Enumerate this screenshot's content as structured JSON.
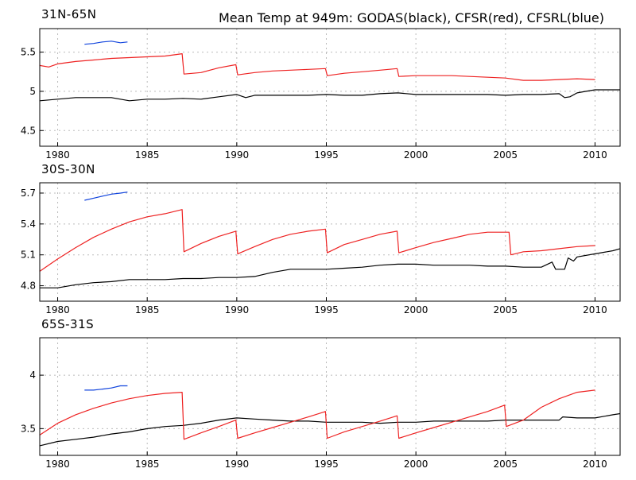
{
  "title": "Mean Temp at 949m: GODAS(black), CFSR(red), CFSRL(blue)",
  "colors": {
    "GODAS": "#000000",
    "CFSR": "#ee2222",
    "CFSRL": "#1144dd",
    "grid": "#bbbbbb",
    "frame": "#000000"
  },
  "chart_data": [
    {
      "type": "line",
      "title": "31N-65N",
      "xlim": [
        1979,
        2011.4
      ],
      "ylim": [
        4.3,
        5.8
      ],
      "xticks": [
        1980,
        1985,
        1990,
        1995,
        2000,
        2005,
        2010
      ],
      "yticks": [
        4.5,
        5,
        5.5
      ],
      "ytick_labels": [
        "4.5",
        "5",
        "5.5"
      ],
      "grid": true,
      "series": [
        {
          "name": "GODAS",
          "color": "#000000",
          "x": [
            1979,
            1980,
            1981,
            1982,
            1983,
            1983.5,
            1984,
            1985,
            1986,
            1987,
            1988,
            1989,
            1990,
            1990.5,
            1991,
            1992,
            1993,
            1994,
            1995,
            1996,
            1997,
            1998,
            1999,
            2000,
            2001,
            2002,
            2003,
            2004,
            2005,
            2006,
            2007,
            2008,
            2008.3,
            2008.6,
            2009,
            2009.5,
            2010,
            2011,
            2011.4
          ],
          "y": [
            4.88,
            4.9,
            4.92,
            4.92,
            4.92,
            4.9,
            4.88,
            4.9,
            4.9,
            4.91,
            4.9,
            4.93,
            4.96,
            4.92,
            4.95,
            4.95,
            4.95,
            4.95,
            4.96,
            4.95,
            4.95,
            4.97,
            4.98,
            4.96,
            4.96,
            4.96,
            4.96,
            4.96,
            4.95,
            4.96,
            4.96,
            4.97,
            4.92,
            4.93,
            4.98,
            5.0,
            5.02,
            5.02,
            5.02
          ]
        },
        {
          "name": "CFSR",
          "color": "#ee2222",
          "x": [
            1979,
            1979.5,
            1980,
            1981,
            1982,
            1983,
            1984,
            1985,
            1986,
            1986.95,
            1987.05,
            1988,
            1989,
            1989.95,
            1990.05,
            1991,
            1992,
            1993,
            1994,
            1994.95,
            1995.05,
            1996,
            1997,
            1998,
            1998.95,
            1999.05,
            2000,
            2001,
            2002,
            2003,
            2004,
            2005,
            2006,
            2007,
            2008,
            2009,
            2010
          ],
          "y": [
            5.33,
            5.31,
            5.35,
            5.38,
            5.4,
            5.42,
            5.43,
            5.44,
            5.45,
            5.48,
            5.22,
            5.24,
            5.3,
            5.34,
            5.21,
            5.24,
            5.26,
            5.27,
            5.28,
            5.29,
            5.2,
            5.23,
            5.25,
            5.27,
            5.29,
            5.19,
            5.2,
            5.2,
            5.2,
            5.19,
            5.18,
            5.17,
            5.14,
            5.14,
            5.15,
            5.16,
            5.15
          ]
        },
        {
          "name": "CFSRL",
          "color": "#1144dd",
          "x": [
            1981.5,
            1982,
            1982.5,
            1983,
            1983.5,
            1983.9
          ],
          "y": [
            5.6,
            5.61,
            5.63,
            5.64,
            5.62,
            5.63
          ]
        }
      ]
    },
    {
      "type": "line",
      "title": "30S-30N",
      "xlim": [
        1979,
        2011.4
      ],
      "ylim": [
        4.65,
        5.8
      ],
      "xticks": [
        1980,
        1985,
        1990,
        1995,
        2000,
        2005,
        2010
      ],
      "yticks": [
        4.8,
        5.1,
        5.4,
        5.7
      ],
      "ytick_labels": [
        "4.8",
        "5.1",
        "5.4",
        "5.7"
      ],
      "grid": true,
      "series": [
        {
          "name": "GODAS",
          "color": "#000000",
          "x": [
            1979,
            1980,
            1981,
            1982,
            1983,
            1984,
            1985,
            1986,
            1987,
            1988,
            1989,
            1990,
            1991,
            1992,
            1993,
            1994,
            1995,
            1996,
            1997,
            1998,
            1999,
            2000,
            2001,
            2002,
            2003,
            2004,
            2005,
            2006,
            2007,
            2007.6,
            2007.8,
            2008.3,
            2008.5,
            2008.8,
            2009,
            2010,
            2011,
            2011.4
          ],
          "y": [
            4.78,
            4.78,
            4.81,
            4.83,
            4.84,
            4.86,
            4.86,
            4.86,
            4.87,
            4.87,
            4.88,
            4.88,
            4.89,
            4.93,
            4.96,
            4.96,
            4.96,
            4.97,
            4.98,
            5.0,
            5.01,
            5.01,
            5.0,
            5.0,
            5.0,
            4.99,
            4.99,
            4.98,
            4.98,
            5.03,
            4.96,
            4.96,
            5.07,
            5.04,
            5.08,
            5.11,
            5.14,
            5.16
          ]
        },
        {
          "name": "CFSR",
          "color": "#ee2222",
          "x": [
            1979,
            1980,
            1981,
            1982,
            1983,
            1984,
            1985,
            1986,
            1986.95,
            1987.05,
            1988,
            1989,
            1989.95,
            1990.05,
            1991,
            1992,
            1993,
            1994,
            1994.95,
            1995.05,
            1996,
            1997,
            1998,
            1998.95,
            1999.05,
            2000,
            2001,
            2002,
            2003,
            2004,
            2005.2,
            2005.3,
            2006,
            2007,
            2008,
            2009,
            2010
          ],
          "y": [
            4.94,
            5.06,
            5.17,
            5.27,
            5.35,
            5.42,
            5.47,
            5.5,
            5.54,
            5.13,
            5.21,
            5.28,
            5.33,
            5.11,
            5.18,
            5.25,
            5.3,
            5.33,
            5.35,
            5.12,
            5.2,
            5.25,
            5.3,
            5.33,
            5.12,
            5.17,
            5.22,
            5.26,
            5.3,
            5.32,
            5.32,
            5.1,
            5.13,
            5.14,
            5.16,
            5.18,
            5.19
          ]
        },
        {
          "name": "CFSRL",
          "color": "#1144dd",
          "x": [
            1981.5,
            1982,
            1982.5,
            1983,
            1983.5,
            1983.9
          ],
          "y": [
            5.63,
            5.65,
            5.67,
            5.69,
            5.7,
            5.71
          ]
        }
      ]
    },
    {
      "type": "line",
      "title": "65S-31S",
      "xlim": [
        1979,
        2011.4
      ],
      "ylim": [
        3.25,
        4.35
      ],
      "xticks": [
        1980,
        1985,
        1990,
        1995,
        2000,
        2005,
        2010
      ],
      "yticks": [
        3.5,
        4
      ],
      "ytick_labels": [
        "3.5",
        "4"
      ],
      "grid": true,
      "series": [
        {
          "name": "GODAS",
          "color": "#000000",
          "x": [
            1979,
            1980,
            1981,
            1982,
            1983,
            1984,
            1985,
            1986,
            1987,
            1988,
            1989,
            1990,
            1991,
            1992,
            1993,
            1994,
            1995,
            1996,
            1997,
            1998,
            1999,
            2000,
            2001,
            2002,
            2003,
            2004,
            2005,
            2006,
            2007,
            2008,
            2008.2,
            2009,
            2010,
            2011,
            2011.4
          ],
          "y": [
            3.34,
            3.38,
            3.4,
            3.42,
            3.45,
            3.47,
            3.5,
            3.52,
            3.53,
            3.55,
            3.58,
            3.6,
            3.59,
            3.58,
            3.57,
            3.57,
            3.56,
            3.56,
            3.56,
            3.55,
            3.56,
            3.56,
            3.57,
            3.57,
            3.57,
            3.57,
            3.58,
            3.58,
            3.58,
            3.58,
            3.61,
            3.6,
            3.6,
            3.63,
            3.64
          ]
        },
        {
          "name": "CFSR",
          "color": "#ee2222",
          "x": [
            1979,
            1980,
            1981,
            1982,
            1983,
            1984,
            1985,
            1986,
            1986.95,
            1987.05,
            1988,
            1989,
            1989.95,
            1990.05,
            1991,
            1992,
            1993,
            1994,
            1994.95,
            1995.05,
            1996,
            1997,
            1998,
            1998.95,
            1999.05,
            2000,
            2001,
            2002,
            2003,
            2004,
            2004.95,
            2005.05,
            2006,
            2007,
            2008,
            2009,
            2010
          ],
          "y": [
            3.44,
            3.55,
            3.63,
            3.69,
            3.74,
            3.78,
            3.81,
            3.83,
            3.84,
            3.4,
            3.46,
            3.52,
            3.58,
            3.41,
            3.46,
            3.51,
            3.56,
            3.61,
            3.66,
            3.41,
            3.47,
            3.52,
            3.57,
            3.62,
            3.41,
            3.46,
            3.51,
            3.56,
            3.61,
            3.66,
            3.72,
            3.52,
            3.58,
            3.7,
            3.78,
            3.84,
            3.86
          ]
        },
        {
          "name": "CFSRL",
          "color": "#1144dd",
          "x": [
            1981.5,
            1982,
            1982.5,
            1983,
            1983.5,
            1983.9
          ],
          "y": [
            3.86,
            3.86,
            3.87,
            3.88,
            3.9,
            3.9
          ]
        }
      ]
    }
  ]
}
